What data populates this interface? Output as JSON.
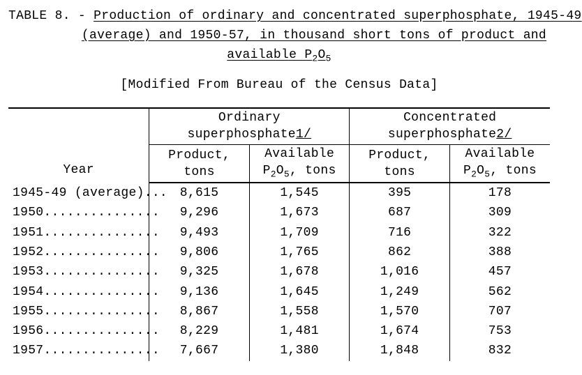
{
  "title": {
    "prefix": "TABLE 8. - ",
    "line1_underlined": "Production of ordinary and concentrated superphosphate, 1945-49",
    "line2_underlined": "(average) and 1950-57, in thousand short tons of product and",
    "line3_pre": "available P",
    "line3_sub": "2",
    "line3_mid": "O",
    "line3_sub2": "5"
  },
  "caption": "[Modified From Bureau of the Census Data]",
  "table": {
    "type": "table",
    "background_color": "#ffffff",
    "rule_color": "#000000",
    "font_family": "Courier New",
    "font_size_pt": 13,
    "header": {
      "year_label": "Year",
      "group1_label": "Ordinary superphosphate",
      "group1_footnote": "1/",
      "group2_label": "Concentrated superphosphate",
      "group2_footnote": "2/",
      "product_label_l1": "Product,",
      "product_label_l2": "tons",
      "p2o5_label_l1_pre": "Available",
      "p2o5_label_l2_pre": "P",
      "p2o5_sub1": "2",
      "p2o5_mid": "O",
      "p2o5_sub2": "5",
      "p2o5_label_l2_post": ", tons"
    },
    "columns": [
      "Year",
      "Ordinary Product tons",
      "Ordinary Available P2O5 tons",
      "Concentrated Product tons",
      "Concentrated Available P2O5 tons"
    ],
    "col_widths_pct": [
      26,
      18.5,
      18.5,
      18.5,
      18.5
    ],
    "rows": [
      {
        "year": "1945-49 (average)...",
        "op": "8,615",
        "oa": "1,545",
        "cp": "395",
        "ca": "178"
      },
      {
        "year": "1950...............",
        "op": "9,296",
        "oa": "1,673",
        "cp": "687",
        "ca": "309"
      },
      {
        "year": "1951...............",
        "op": "9,493",
        "oa": "1,709",
        "cp": "716",
        "ca": "322"
      },
      {
        "year": "1952...............",
        "op": "9,806",
        "oa": "1,765",
        "cp": "862",
        "ca": "388"
      },
      {
        "year": "1953...............",
        "op": "9,325",
        "oa": "1,678",
        "cp": "1,016",
        "ca": "457"
      },
      {
        "year": "1954...............",
        "op": "9,136",
        "oa": "1,645",
        "cp": "1,249",
        "ca": "562"
      },
      {
        "year": "1955...............",
        "op": "8,867",
        "oa": "1,558",
        "cp": "1,570",
        "ca": "707"
      },
      {
        "year": "1956...............",
        "op": "8,229",
        "oa": "1,481",
        "cp": "1,674",
        "ca": "753"
      },
      {
        "year": "1957...............",
        "op": "7,667",
        "oa": "1,380",
        "cp": "1,848",
        "ca": "832"
      }
    ]
  }
}
